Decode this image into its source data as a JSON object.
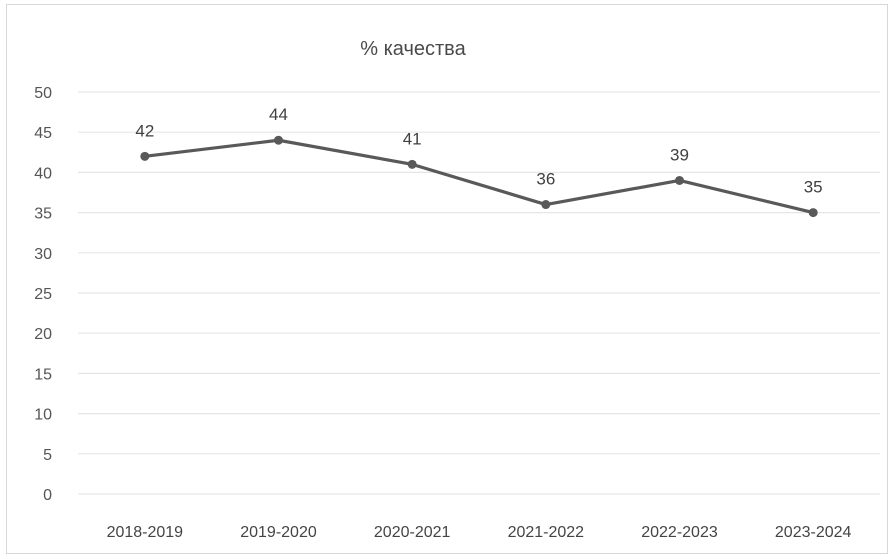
{
  "chart_data": {
    "type": "line",
    "title": "% качества",
    "xlabel": "",
    "ylabel": "",
    "categories": [
      "2018-2019",
      "2019-2020",
      "2020-2021",
      "2021-2022",
      "2022-2023",
      "2023-2024"
    ],
    "series": [
      {
        "values": [
          42,
          44,
          41,
          36,
          39,
          35
        ],
        "data_labels": [
          "42",
          "44",
          "41",
          "36",
          "39",
          "35"
        ],
        "color": "#595959"
      }
    ],
    "ylim": [
      0,
      50
    ],
    "yticks": [
      0,
      5,
      10,
      15,
      20,
      25,
      30,
      35,
      40,
      45,
      50
    ],
    "grid": true,
    "legend": "none",
    "gridline_color": "#e6e6e6"
  }
}
